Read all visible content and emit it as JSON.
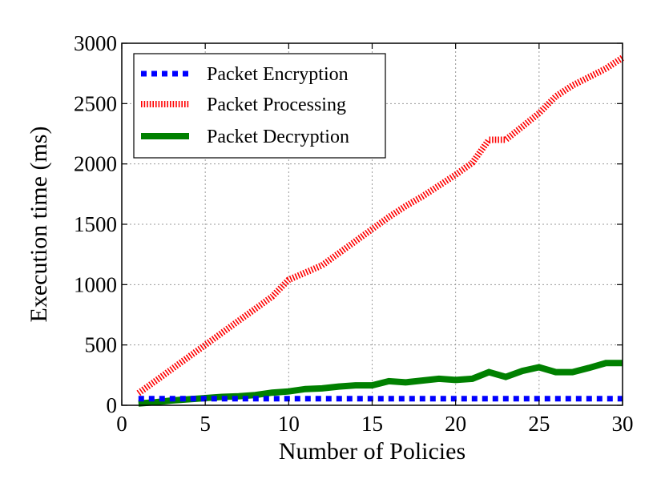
{
  "chart_data": {
    "type": "line",
    "title": "",
    "xlabel": "Number of Policies",
    "ylabel": "Execution time (ms)",
    "xlim": [
      0,
      30
    ],
    "ylim": [
      0,
      3000
    ],
    "xticks": [
      0,
      5,
      10,
      15,
      20,
      25,
      30
    ],
    "yticks": [
      0,
      500,
      1000,
      1500,
      2000,
      2500,
      3000
    ],
    "grid": true,
    "legend_position": "top-left",
    "x": [
      1,
      2,
      3,
      4,
      5,
      6,
      7,
      8,
      9,
      10,
      11,
      12,
      13,
      14,
      15,
      16,
      17,
      18,
      19,
      20,
      21,
      22,
      23,
      24,
      25,
      26,
      27,
      28,
      29,
      30
    ],
    "series": [
      {
        "name": "Packet Encryption",
        "color": "#0000ff",
        "style": "dashed",
        "values": [
          55,
          55,
          55,
          55,
          55,
          55,
          55,
          55,
          55,
          55,
          55,
          55,
          55,
          55,
          55,
          55,
          55,
          55,
          55,
          55,
          55,
          55,
          55,
          55,
          55,
          55,
          55,
          55,
          55,
          55
        ]
      },
      {
        "name": "Packet Processing",
        "color": "#ff0000",
        "style": "dotted",
        "values": [
          100,
          200,
          300,
          400,
          500,
          600,
          700,
          800,
          900,
          1040,
          1100,
          1160,
          1260,
          1360,
          1460,
          1560,
          1650,
          1730,
          1820,
          1910,
          2010,
          2200,
          2200,
          2310,
          2420,
          2560,
          2650,
          2720,
          2790,
          2880
        ]
      },
      {
        "name": "Packet Decryption",
        "color": "#008000",
        "style": "solid",
        "values": [
          15,
          25,
          40,
          50,
          60,
          70,
          75,
          85,
          105,
          115,
          135,
          140,
          155,
          165,
          165,
          200,
          190,
          205,
          220,
          210,
          220,
          275,
          235,
          285,
          315,
          275,
          275,
          310,
          350,
          350
        ]
      }
    ]
  }
}
